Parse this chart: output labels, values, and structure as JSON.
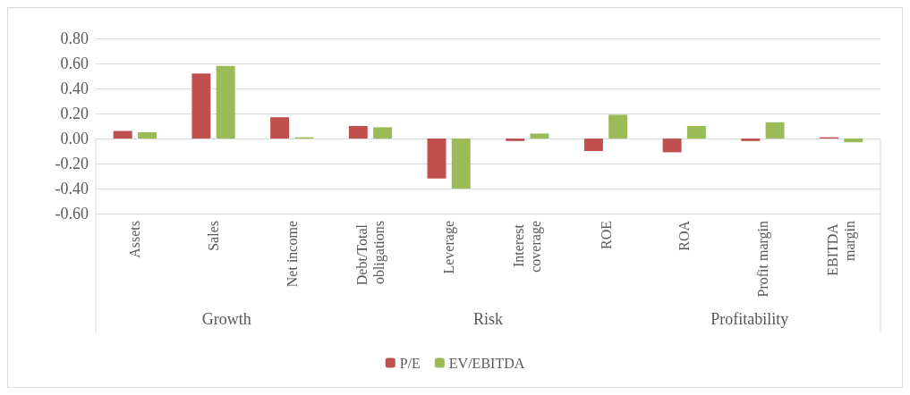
{
  "chart_data": {
    "type": "bar",
    "categories": [
      "Assets",
      "Sales",
      "Net income",
      "Debt/Total obligations",
      "Leverage",
      "Interest coverage",
      "ROE",
      "ROA",
      "Profit margin",
      "EBITDA margin"
    ],
    "series": [
      {
        "name": "P/E",
        "color": "#c0504d",
        "values": [
          0.06,
          0.52,
          0.17,
          0.1,
          -0.32,
          -0.02,
          -0.1,
          -0.11,
          -0.02,
          0.01
        ]
      },
      {
        "name": "EV/EBITDA",
        "color": "#9bbb59",
        "values": [
          0.05,
          0.58,
          0.01,
          0.09,
          -0.4,
          0.04,
          0.19,
          0.1,
          0.13,
          -0.03
        ]
      }
    ],
    "ylim": [
      -0.6,
      0.8
    ],
    "yticks": [
      {
        "value": -0.6,
        "label": "-0.60"
      },
      {
        "value": -0.4,
        "label": "-0.40"
      },
      {
        "value": -0.2,
        "label": "-0.20"
      },
      {
        "value": 0,
        "label": "0.00"
      },
      {
        "value": 0.2,
        "label": "0.20"
      },
      {
        "value": 0.4,
        "label": "0.40"
      },
      {
        "value": 0.6,
        "label": "0.60"
      },
      {
        "value": 0.8,
        "label": "0.80"
      }
    ],
    "annotations": [
      "Growth",
      "Risk",
      "Profitability"
    ],
    "grid": "y",
    "legend": "bottom"
  }
}
